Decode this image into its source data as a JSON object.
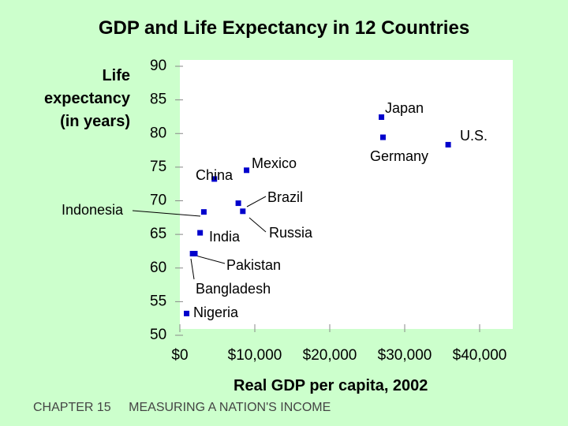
{
  "footer": {
    "chapter": "CHAPTER 15",
    "title": "MEASURING A NATION'S INCOME"
  },
  "colors": {
    "background": "#ccffcc",
    "plot_area": "#ffffff",
    "marker": "#0000cc"
  },
  "chart_data": {
    "type": "scatter",
    "title": "GDP and Life Expectancy in 12 Countries",
    "xlabel": "Real GDP per capita, 2002",
    "ylabel_lines": [
      "Life",
      "expectancy",
      "(in years)"
    ],
    "xlim": [
      0,
      40000
    ],
    "ylim": [
      50,
      90
    ],
    "x_ticks": [
      0,
      10000,
      20000,
      30000,
      40000
    ],
    "x_tick_labels": [
      "$0",
      "$10,000",
      "$20,000",
      "$30,000",
      "$40,000"
    ],
    "y_ticks": [
      50,
      55,
      60,
      65,
      70,
      75,
      80,
      85,
      90
    ],
    "y_tick_labels": [
      "50",
      "55",
      "60",
      "65",
      "70",
      "75",
      "80",
      "85",
      "90"
    ],
    "grid": false,
    "points": [
      {
        "name": "Japan",
        "x": 26900,
        "y": 81.5
      },
      {
        "name": "Germany",
        "x": 27100,
        "y": 78.5
      },
      {
        "name": "U.S.",
        "x": 35800,
        "y": 77.4
      },
      {
        "name": "Mexico",
        "x": 8900,
        "y": 73.6
      },
      {
        "name": "China",
        "x": 4600,
        "y": 72.3
      },
      {
        "name": "Brazil",
        "x": 7800,
        "y": 68.7
      },
      {
        "name": "Indonesia",
        "x": 3200,
        "y": 67.4
      },
      {
        "name": "Russia",
        "x": 8400,
        "y": 67.5
      },
      {
        "name": "India",
        "x": 2700,
        "y": 64.3
      },
      {
        "name": "Pakistan",
        "x": 2000,
        "y": 61.2
      },
      {
        "name": "Bangladesh",
        "x": 1700,
        "y": 61.2
      },
      {
        "name": "Nigeria",
        "x": 900,
        "y": 52.3
      }
    ]
  }
}
